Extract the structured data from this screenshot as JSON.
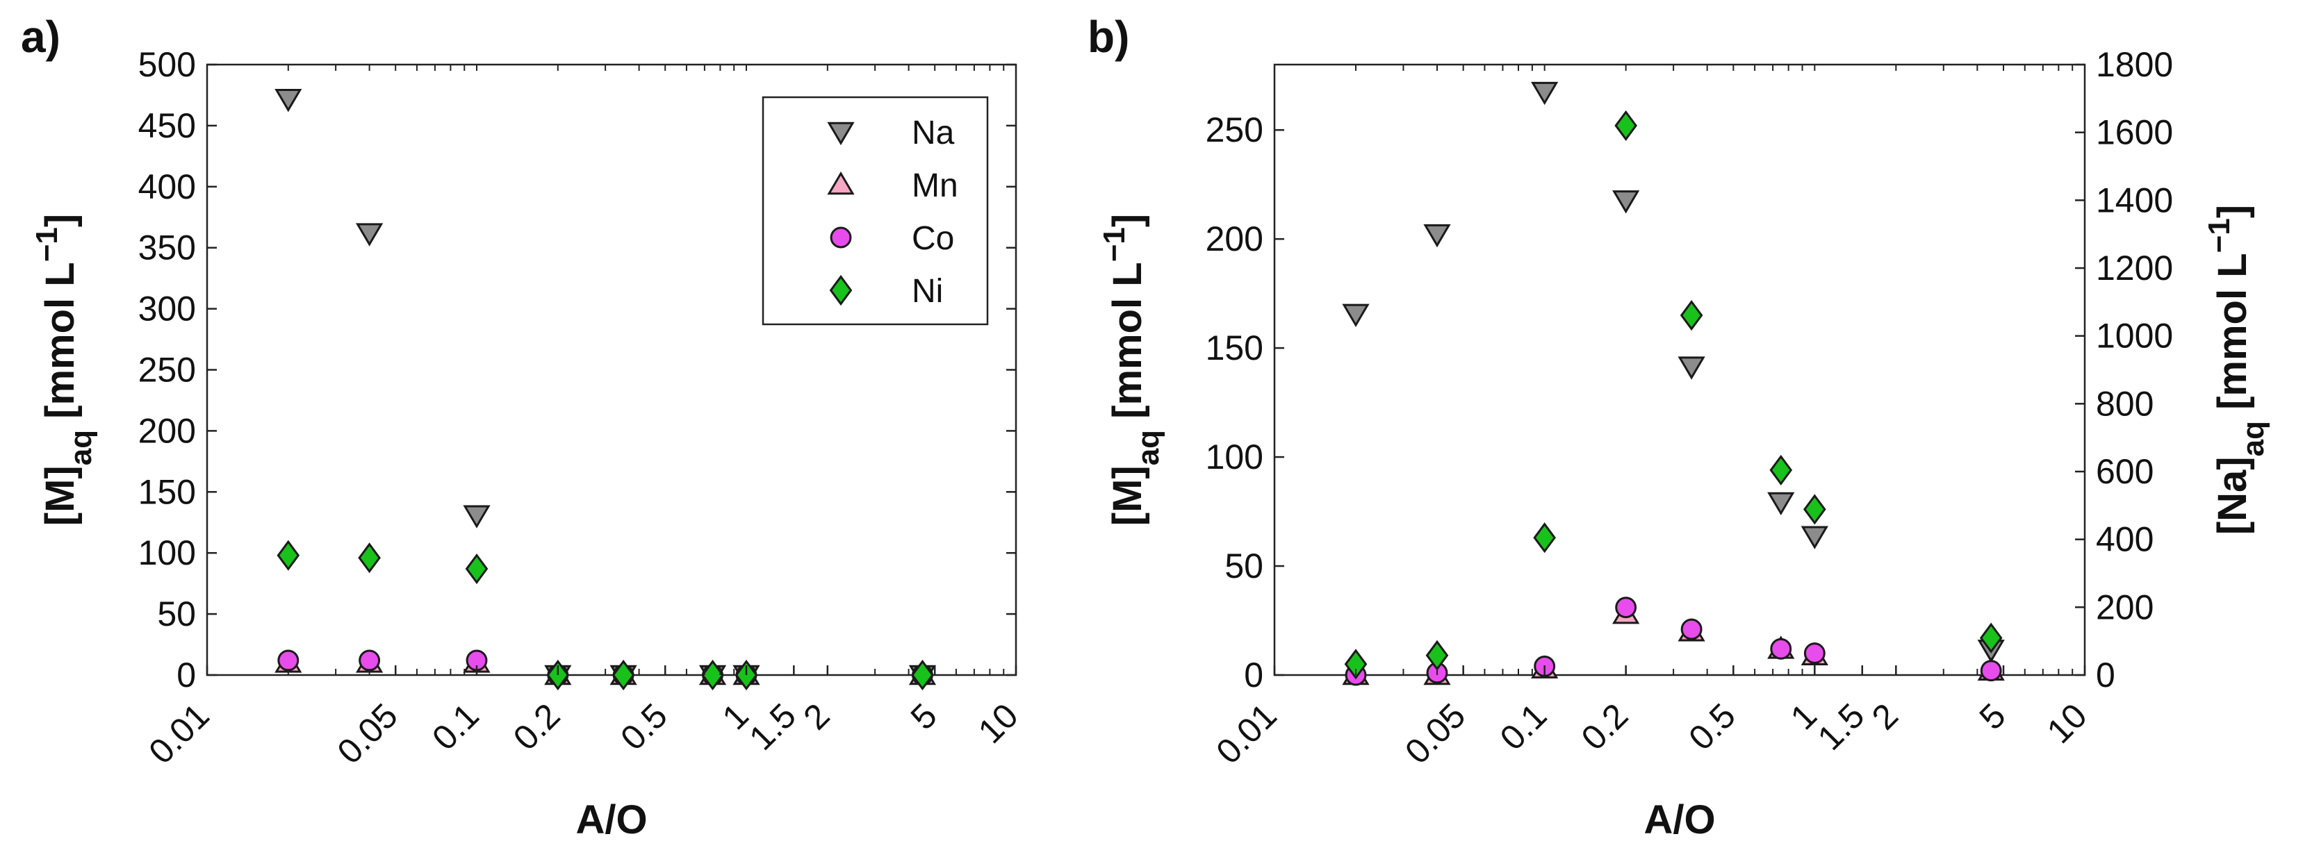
{
  "chart_data": [
    {
      "panel_label": "a)",
      "type": "scatter",
      "xscale": "log",
      "xlabel": "A/O",
      "ylabel_main": "[M]",
      "ylabel_sub": "aq",
      "ylabel_unit_pre": " [mmol L",
      "ylabel_unit_sup": "−1",
      "ylabel_unit_post": "]",
      "xlim": [
        0.01,
        10
      ],
      "ylim": [
        0,
        500
      ],
      "xticks": [
        0.01,
        0.05,
        0.1,
        0.2,
        0.5,
        1,
        1.5,
        2,
        5,
        10
      ],
      "xtick_labels": [
        "0.01",
        "0.05",
        "0.1",
        "0.2",
        "0.5",
        "1",
        "1.5",
        "2",
        "5",
        "10"
      ],
      "yticks": [
        0,
        50,
        100,
        150,
        200,
        250,
        300,
        350,
        400,
        450,
        500
      ],
      "ytick_labels": [
        "0",
        "50",
        "100",
        "150",
        "200",
        "250",
        "300",
        "350",
        "400",
        "450",
        "500"
      ],
      "legend_position": "top-right",
      "series": [
        {
          "name": "Na",
          "axis": "left",
          "marker": "triangle-down",
          "color": "#8c8c8c",
          "x": [
            0.02,
            0.04,
            0.1,
            0.2,
            0.35,
            0.75,
            1,
            4.5
          ],
          "y": [
            472,
            362,
            131,
            0,
            0,
            0,
            0,
            0
          ]
        },
        {
          "name": "Mn",
          "axis": "left",
          "marker": "triangle-up",
          "color": "#f7a7c3",
          "x": [
            0.02,
            0.04,
            0.1,
            0.2,
            0.35,
            0.75,
            1,
            4.5
          ],
          "y": [
            10,
            10,
            10,
            0,
            0,
            0,
            0,
            0
          ]
        },
        {
          "name": "Co",
          "axis": "left",
          "marker": "circle",
          "color": "#e84cec",
          "x": [
            0.02,
            0.04,
            0.1,
            0.2,
            0.35,
            0.75,
            1,
            4.5
          ],
          "y": [
            12,
            12,
            12,
            0,
            0,
            0,
            0,
            0
          ]
        },
        {
          "name": "Ni",
          "axis": "left",
          "marker": "diamond",
          "color": "#18c21b",
          "x": [
            0.02,
            0.04,
            0.1,
            0.2,
            0.35,
            0.75,
            1,
            4.5
          ],
          "y": [
            98,
            96,
            87,
            0,
            0,
            0,
            0,
            0
          ]
        }
      ]
    },
    {
      "panel_label": "b)",
      "type": "scatter",
      "xscale": "log",
      "xlabel": "A/O",
      "ylabel_main": "[M]",
      "ylabel_sub": "aq",
      "ylabel_unit_pre": " [mmol L",
      "ylabel_unit_sup": "−1",
      "ylabel_unit_post": "]",
      "y2label_main": "[Na]",
      "y2label_sub": "aq",
      "xlim": [
        0.01,
        10
      ],
      "ylim": [
        0,
        280
      ],
      "y2lim": [
        0,
        1800
      ],
      "xticks": [
        0.01,
        0.05,
        0.1,
        0.2,
        0.5,
        1,
        1.5,
        2,
        5,
        10
      ],
      "xtick_labels": [
        "0.01",
        "0.05",
        "0.1",
        "0.2",
        "0.5",
        "1",
        "1.5",
        "2",
        "5",
        "10"
      ],
      "yticks": [
        0,
        50,
        100,
        150,
        200,
        250
      ],
      "ytick_labels": [
        "0",
        "50",
        "100",
        "150",
        "200",
        "250"
      ],
      "y2ticks": [
        0,
        200,
        400,
        600,
        800,
        1000,
        1200,
        1400,
        1600,
        1800
      ],
      "y2tick_labels": [
        "0",
        "200",
        "400",
        "600",
        "800",
        "1000",
        "1200",
        "1400",
        "1600",
        "1800"
      ],
      "series": [
        {
          "name": "Na",
          "axis": "right",
          "marker": "triangle-down",
          "color": "#8c8c8c",
          "x": [
            0.02,
            0.04,
            0.1,
            0.2,
            0.35,
            0.75,
            1,
            4.5
          ],
          "y": [
            1065,
            1300,
            1720,
            1400,
            910,
            510,
            410,
            75
          ]
        },
        {
          "name": "Mn",
          "axis": "left",
          "marker": "triangle-up",
          "color": "#f7a7c3",
          "x": [
            0.02,
            0.04,
            0.1,
            0.2,
            0.35,
            0.75,
            1,
            4.5
          ],
          "y": [
            0,
            0,
            3,
            28,
            20,
            12,
            9,
            2
          ]
        },
        {
          "name": "Co",
          "axis": "left",
          "marker": "circle",
          "color": "#e84cec",
          "x": [
            0.02,
            0.04,
            0.1,
            0.2,
            0.35,
            0.75,
            1,
            4.5
          ],
          "y": [
            0,
            1,
            4,
            31,
            21,
            12,
            10,
            2
          ]
        },
        {
          "name": "Ni",
          "axis": "left",
          "marker": "diamond",
          "color": "#18c21b",
          "x": [
            0.02,
            0.04,
            0.1,
            0.2,
            0.35,
            0.75,
            1,
            4.5
          ],
          "y": [
            5,
            9,
            63,
            252,
            165,
            94,
            76,
            17
          ]
        }
      ]
    }
  ]
}
